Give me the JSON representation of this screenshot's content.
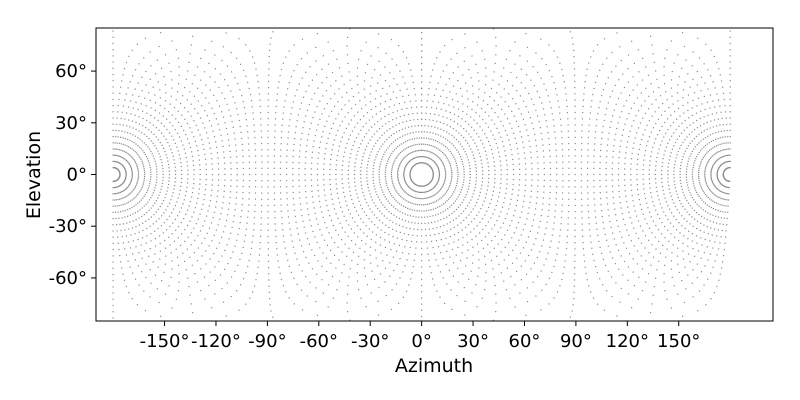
{
  "chart_data": {
    "type": "scatter",
    "title": "",
    "xlabel": "Azimuth",
    "ylabel": "Elevation",
    "xlim": [
      -190,
      205
    ],
    "ylim": [
      -85,
      85
    ],
    "xticks": [
      -150,
      -120,
      -90,
      -60,
      -30,
      0,
      30,
      60,
      90,
      120,
      150
    ],
    "xtick_labels": [
      "-150°",
      "-120°",
      "-90°",
      "-60°",
      "-30°",
      "0°",
      "30°",
      "60°",
      "90°",
      "120°",
      "150°"
    ],
    "yticks": [
      60,
      30,
      0,
      -30,
      -60
    ],
    "ytick_labels": [
      "60°",
      "30°",
      "0°",
      "-30°",
      "-60°"
    ],
    "grid": false,
    "legend": "none",
    "marker_color": "#8c8c8c",
    "point_grid": {
      "azimuth_range": [
        -180,
        180
      ],
      "elevation_range": [
        -85,
        85
      ],
      "description": "regular rotated sampling grid of view directions"
    }
  }
}
